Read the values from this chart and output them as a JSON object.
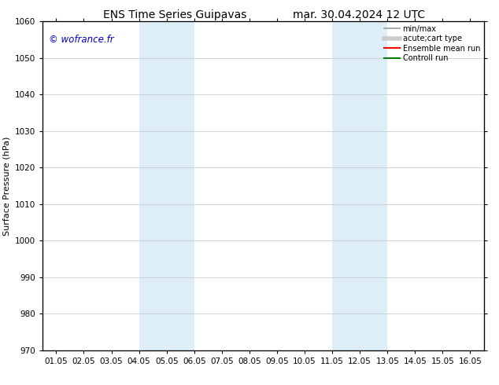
{
  "title_left": "ENS Time Series Guipavas",
  "title_right": "mar. 30.04.2024 12 UTC",
  "ylabel": "Surface Pressure (hPa)",
  "ylim": [
    970,
    1060
  ],
  "yticks": [
    970,
    980,
    990,
    1000,
    1010,
    1020,
    1030,
    1040,
    1050,
    1060
  ],
  "x_labels": [
    "01.05",
    "02.05",
    "03.05",
    "04.05",
    "05.05",
    "06.05",
    "07.05",
    "08.05",
    "09.05",
    "10.05",
    "11.05",
    "12.05",
    "13.05",
    "14.05",
    "15.05",
    "16.05"
  ],
  "x_positions": [
    0,
    1,
    2,
    3,
    4,
    5,
    6,
    7,
    8,
    9,
    10,
    11,
    12,
    13,
    14,
    15
  ],
  "xlim": [
    -0.5,
    15.5
  ],
  "shaded_regions": [
    {
      "xmin": 3.0,
      "xmax": 5.0,
      "color": "#ddeef8"
    },
    {
      "xmin": 10.0,
      "xmax": 12.0,
      "color": "#ddeef8"
    }
  ],
  "watermark": "© wofrance.fr",
  "watermark_color": "#0000cc",
  "background_color": "#ffffff",
  "grid_color": "#cccccc",
  "legend_items": [
    {
      "label": "min/max",
      "color": "#999999",
      "lw": 1.2,
      "style": "solid"
    },
    {
      "label": "acute;cart type",
      "color": "#cccccc",
      "lw": 4,
      "style": "solid"
    },
    {
      "label": "Ensemble mean run",
      "color": "#ff0000",
      "lw": 1.5,
      "style": "solid"
    },
    {
      "label": "Controll run",
      "color": "#008000",
      "lw": 1.5,
      "style": "solid"
    }
  ],
  "title_fontsize": 10,
  "ylabel_fontsize": 8,
  "tick_fontsize": 7.5,
  "watermark_fontsize": 8.5,
  "legend_fontsize": 7
}
